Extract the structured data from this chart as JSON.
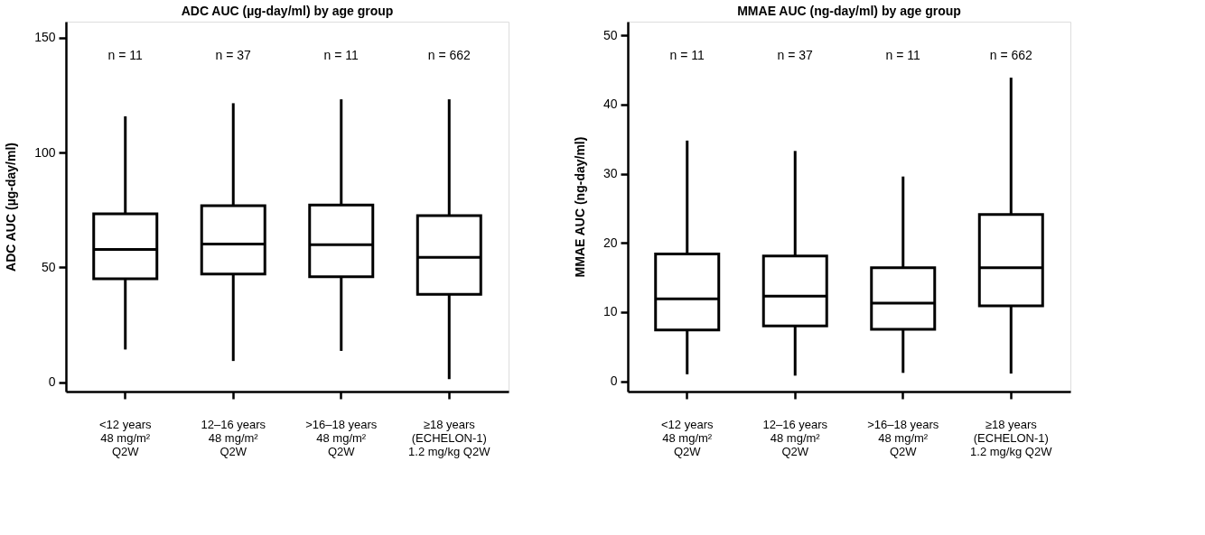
{
  "chart_data": [
    {
      "type": "box",
      "title": "ADC AUC (µg-day/ml) by age group",
      "ylabel": "ADC AUC (µg-day/ml)",
      "categories": [
        "<12 years\n48 mg/m²\nQ2W",
        "12–16 years\n48 mg/m²\nQ2W",
        ">16–18 years\n48 mg/m²\nQ2W",
        "≥18 years\n(ECHELON-1)\n1.2 mg/kg Q2W"
      ],
      "boxes": [
        {
          "low": 14.3,
          "q1": 45.1,
          "median": 57.8,
          "q3": 73.4,
          "high": 115.8
        },
        {
          "low": 9.3,
          "q1": 47.1,
          "median": 60.2,
          "q3": 76.9,
          "high": 121.5
        },
        {
          "low": 13.7,
          "q1": 46.0,
          "median": 59.9,
          "q3": 77.2,
          "high": 123.2
        },
        {
          "low": 1.4,
          "q1": 38.3,
          "median": 54.4,
          "q3": 72.6,
          "high": 123.2
        }
      ],
      "ylim": [
        -4,
        157
      ],
      "yticks": [
        0,
        50,
        100,
        150
      ],
      "grid": false,
      "annotations": [
        "n = 11",
        "n = 37",
        "n = 11",
        "n = 662"
      ]
    },
    {
      "type": "box",
      "title": "MMAE AUC (ng-day/ml) by age group",
      "ylabel": "MMAE AUC (ng-day/ml)",
      "categories": [
        "<12 years\n48 mg/m²\nQ2W",
        "12–16 years\n48 mg/m²\nQ2W",
        ">16–18 years\n48 mg/m²\nQ2W",
        "≥18 years\n(ECHELON-1)\n1.2 mg/kg Q2W"
      ],
      "boxes": [
        {
          "low": 1.0,
          "q1": 7.4,
          "median": 11.9,
          "q3": 18.4,
          "high": 34.8
        },
        {
          "low": 0.8,
          "q1": 8.0,
          "median": 12.3,
          "q3": 18.1,
          "high": 33.3
        },
        {
          "low": 1.2,
          "q1": 7.5,
          "median": 11.3,
          "q3": 16.4,
          "high": 29.6
        },
        {
          "low": 1.1,
          "q1": 10.9,
          "median": 16.4,
          "q3": 24.1,
          "high": 43.9
        }
      ],
      "ylim": [
        -1.5,
        52
      ],
      "yticks": [
        0,
        10,
        20,
        30,
        40,
        50
      ],
      "grid": false,
      "annotations": [
        "n = 11",
        "n = 37",
        "n = 11",
        "n = 662"
      ]
    }
  ]
}
